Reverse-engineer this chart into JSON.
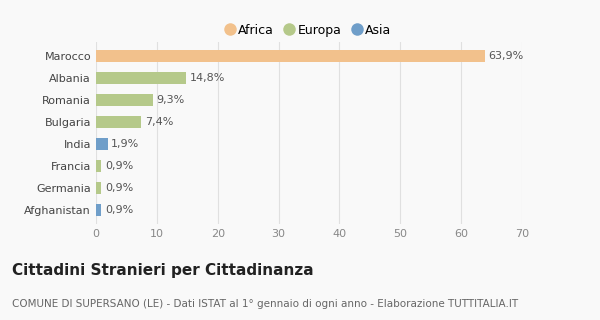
{
  "categories": [
    "Marocco",
    "Albania",
    "Romania",
    "Bulgaria",
    "India",
    "Francia",
    "Germania",
    "Afghanistan"
  ],
  "values": [
    63.9,
    14.8,
    9.3,
    7.4,
    1.9,
    0.9,
    0.9,
    0.9
  ],
  "labels": [
    "63,9%",
    "14,8%",
    "9,3%",
    "7,4%",
    "1,9%",
    "0,9%",
    "0,9%",
    "0,9%"
  ],
  "colors": [
    "#F2C18C",
    "#B5C98A",
    "#B5C98A",
    "#B5C98A",
    "#6F9EC9",
    "#B5C98A",
    "#B5C98A",
    "#6F9EC9"
  ],
  "legend_labels": [
    "Africa",
    "Europa",
    "Asia"
  ],
  "legend_colors": [
    "#F2C18C",
    "#B5C98A",
    "#6F9EC9"
  ],
  "xlim": [
    0,
    70
  ],
  "xticks": [
    0,
    10,
    20,
    30,
    40,
    50,
    60,
    70
  ],
  "title": "Cittadini Stranieri per Cittadinanza",
  "subtitle": "COMUNE DI SUPERSANO (LE) - Dati ISTAT al 1° gennaio di ogni anno - Elaborazione TUTTITALIA.IT",
  "background_color": "#f9f9f9",
  "grid_color": "#e0e0e0",
  "bar_height": 0.55,
  "title_fontsize": 11,
  "subtitle_fontsize": 7.5,
  "label_fontsize": 8,
  "tick_fontsize": 8,
  "legend_fontsize": 9
}
